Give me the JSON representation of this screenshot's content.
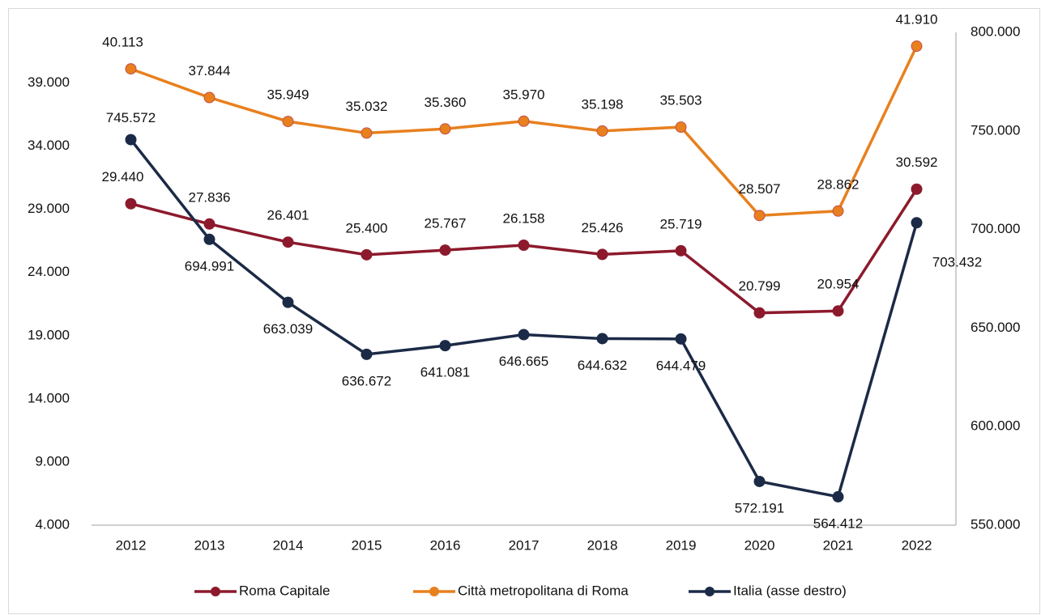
{
  "chart_data": {
    "type": "line",
    "categories": [
      "2012",
      "2013",
      "2014",
      "2015",
      "2016",
      "2017",
      "2018",
      "2019",
      "2020",
      "2021",
      "2022"
    ],
    "series": [
      {
        "name": "Roma Capitale",
        "color": "#8c1a2c",
        "values": [
          29440,
          27836,
          26401,
          25400,
          25767,
          26158,
          25426,
          25719,
          20799,
          20954,
          30592
        ],
        "value_labels": [
          "29.440",
          "27.836",
          "26.401",
          "25.400",
          "25.767",
          "26.158",
          "25.426",
          "25.719",
          "20.799",
          "20.954",
          "30.592"
        ]
      },
      {
        "name": "Città metropolitana di Roma",
        "color": "#e8801e",
        "values": [
          40113,
          37844,
          35949,
          35032,
          35360,
          35970,
          35198,
          35503,
          28507,
          28862,
          41910
        ],
        "value_labels": [
          "40.113",
          "37.844",
          "35.949",
          "35.032",
          "35.360",
          "35.970",
          "35.198",
          "35.503",
          "28.507",
          "28.862",
          "41.910"
        ]
      },
      {
        "name": "Italia (asse destro)",
        "color": "#1b2a46",
        "axis": "y2",
        "values": [
          745572,
          694991,
          663039,
          636672,
          641081,
          646665,
          644632,
          644479,
          572191,
          564412,
          703432
        ],
        "value_labels": [
          "745.572",
          "694.991",
          "663.039",
          "636.672",
          "641.081",
          "646.665",
          "644.632",
          "644.479",
          "572.191",
          "564.412",
          "703.432"
        ]
      }
    ],
    "ylim": [
      4000,
      43000
    ],
    "yticks": [
      {
        "value": 4000,
        "label": "4.000"
      },
      {
        "value": 9000,
        "label": "9.000"
      },
      {
        "value": 14000,
        "label": "14.000"
      },
      {
        "value": 19000,
        "label": "19.000"
      },
      {
        "value": 24000,
        "label": "24.000"
      },
      {
        "value": 29000,
        "label": "29.000"
      },
      {
        "value": 34000,
        "label": "34.000"
      },
      {
        "value": 39000,
        "label": "39.000"
      }
    ],
    "y2lim": [
      550000,
      800000
    ],
    "y2ticks": [
      {
        "value": 550000,
        "label": "550.000"
      },
      {
        "value": 600000,
        "label": "600.000"
      },
      {
        "value": 650000,
        "label": "650.000"
      },
      {
        "value": 700000,
        "label": "700.000"
      },
      {
        "value": 750000,
        "label": "750.000"
      },
      {
        "value": 800000,
        "label": "800.000"
      }
    ],
    "legend": "bottom"
  }
}
